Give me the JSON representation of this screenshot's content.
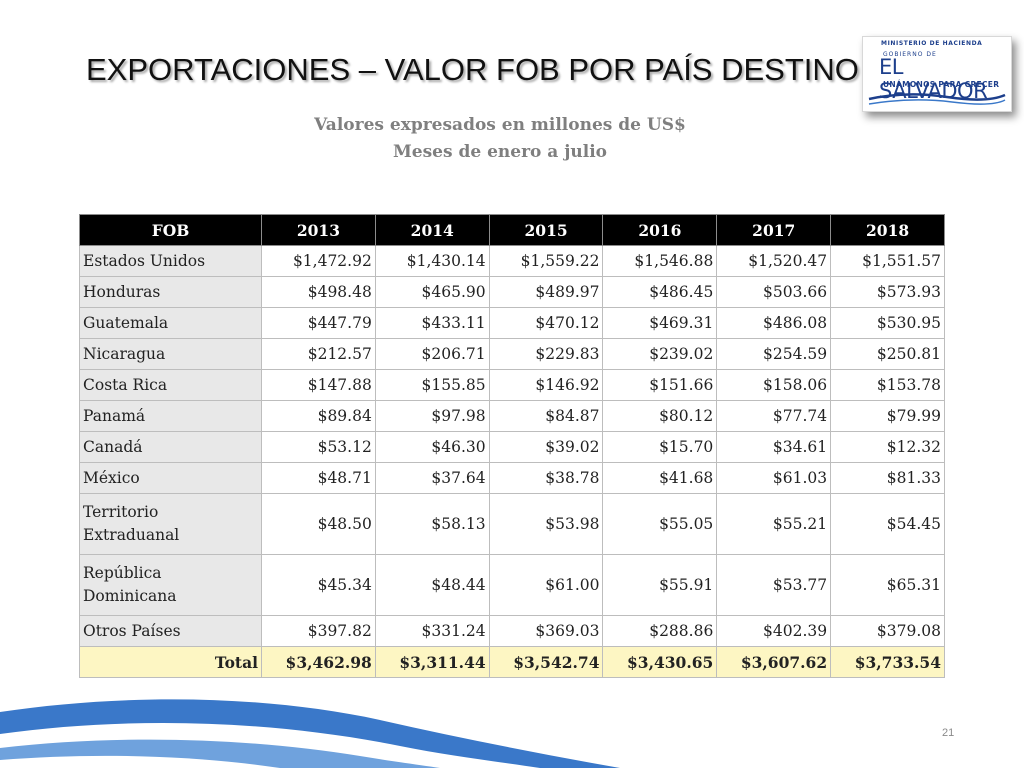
{
  "slide": {
    "title": "EXPORTACIONES –  VALOR FOB POR PAÍS DESTINO",
    "subtitle_line1": "Valores expresados en millones de US$",
    "subtitle_line2": "Meses de enero a julio",
    "page_number": "21"
  },
  "logo": {
    "ministry": "MINISTERIO DE HACIENDA",
    "gobierno": "GOBIERNO DE",
    "country": "EL SALVADOR",
    "motto": "UNÁMONOS PARA CRECER"
  },
  "colors": {
    "header_bg": "#000000",
    "country_col_bg": "#e8e8e8",
    "total_row_bg": "#fdf6c3",
    "wave_blue": "#3a78c9"
  },
  "table": {
    "headers": [
      "FOB",
      "2013",
      "2014",
      "2015",
      "2016",
      "2017",
      "2018"
    ],
    "rows": [
      {
        "country": "Estados Unidos",
        "values": [
          "$1,472.92",
          "$1,430.14",
          "$1,559.22",
          "$1,546.88",
          "$1,520.47",
          "$1,551.57"
        ]
      },
      {
        "country": "Honduras",
        "values": [
          "$498.48",
          "$465.90",
          "$489.97",
          "$486.45",
          "$503.66",
          "$573.93"
        ]
      },
      {
        "country": "Guatemala",
        "values": [
          "$447.79",
          "$433.11",
          "$470.12",
          "$469.31",
          "$486.08",
          "$530.95"
        ]
      },
      {
        "country": "Nicaragua",
        "values": [
          "$212.57",
          "$206.71",
          "$229.83",
          "$239.02",
          "$254.59",
          "$250.81"
        ]
      },
      {
        "country": "Costa Rica",
        "values": [
          "$147.88",
          "$155.85",
          "$146.92",
          "$151.66",
          "$158.06",
          "$153.78"
        ]
      },
      {
        "country": "Panamá",
        "values": [
          "$89.84",
          "$97.98",
          "$84.87",
          "$80.12",
          "$77.74",
          "$79.99"
        ]
      },
      {
        "country": "Canadá",
        "values": [
          "$53.12",
          "$46.30",
          "$39.02",
          "$15.70",
          "$34.61",
          "$12.32"
        ]
      },
      {
        "country": "México",
        "values": [
          "$48.71",
          "$37.64",
          "$38.78",
          "$41.68",
          "$61.03",
          "$81.33"
        ]
      },
      {
        "country": "Territorio Extraduanal",
        "values": [
          "$48.50",
          "$58.13",
          "$53.98",
          "$55.05",
          "$55.21",
          "$54.45"
        ],
        "tall": true
      },
      {
        "country": "República Dominicana",
        "values": [
          "$45.34",
          "$48.44",
          "$61.00",
          "$55.91",
          "$53.77",
          "$65.31"
        ],
        "tall": true
      },
      {
        "country": "Otros Países",
        "values": [
          "$397.82",
          "$331.24",
          "$369.03",
          "$288.86",
          "$402.39",
          "$379.08"
        ]
      }
    ],
    "total": {
      "label": "Total",
      "values": [
        "$3,462.98",
        "$3,311.44",
        "$3,542.74",
        "$3,430.65",
        "$3,607.62",
        "$3,733.54"
      ]
    }
  }
}
